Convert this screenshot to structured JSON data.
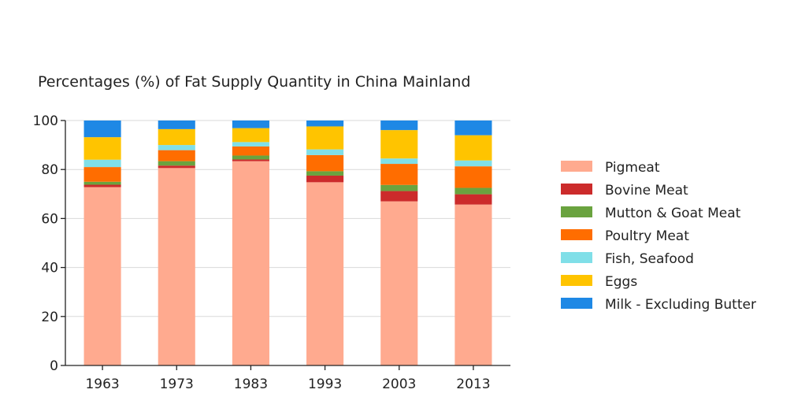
{
  "chart_data": {
    "type": "bar",
    "stacked": true,
    "title": "Percentages (%) of Fat Supply Quantity in China Mainland",
    "xlabel": "",
    "ylabel": "",
    "ylim": [
      0,
      100
    ],
    "yticks": [
      0,
      20,
      40,
      60,
      80,
      100
    ],
    "grid": true,
    "legend_position": "right",
    "categories": [
      "1963",
      "1973",
      "1983",
      "1993",
      "2003",
      "2013"
    ],
    "series": [
      {
        "name": "Pigmeat",
        "color": "#ffaa8f",
        "values": [
          72.8,
          80.6,
          83.4,
          74.8,
          67.0,
          65.7
        ]
      },
      {
        "name": "Bovine Meat",
        "color": "#cc2b2b",
        "values": [
          1.0,
          1.0,
          0.7,
          2.7,
          4.2,
          4.2
        ]
      },
      {
        "name": "Mutton & Goat Meat",
        "color": "#6aa33f",
        "values": [
          1.2,
          1.8,
          1.6,
          1.8,
          2.5,
          2.6
        ]
      },
      {
        "name": "Poultry Meat",
        "color": "#ff6d00",
        "values": [
          6.0,
          4.5,
          3.7,
          6.6,
          8.6,
          8.8
        ]
      },
      {
        "name": "Fish, Seafood",
        "color": "#80dfe8",
        "values": [
          3.0,
          2.1,
          1.8,
          2.3,
          2.2,
          2.4
        ]
      },
      {
        "name": "Eggs",
        "color": "#ffc400",
        "values": [
          9.2,
          6.5,
          5.7,
          9.4,
          11.6,
          10.3
        ]
      },
      {
        "name": "Milk - Excluding Butter",
        "color": "#1e88e5",
        "values": [
          6.8,
          3.5,
          3.1,
          2.4,
          3.9,
          6.0
        ]
      }
    ]
  }
}
